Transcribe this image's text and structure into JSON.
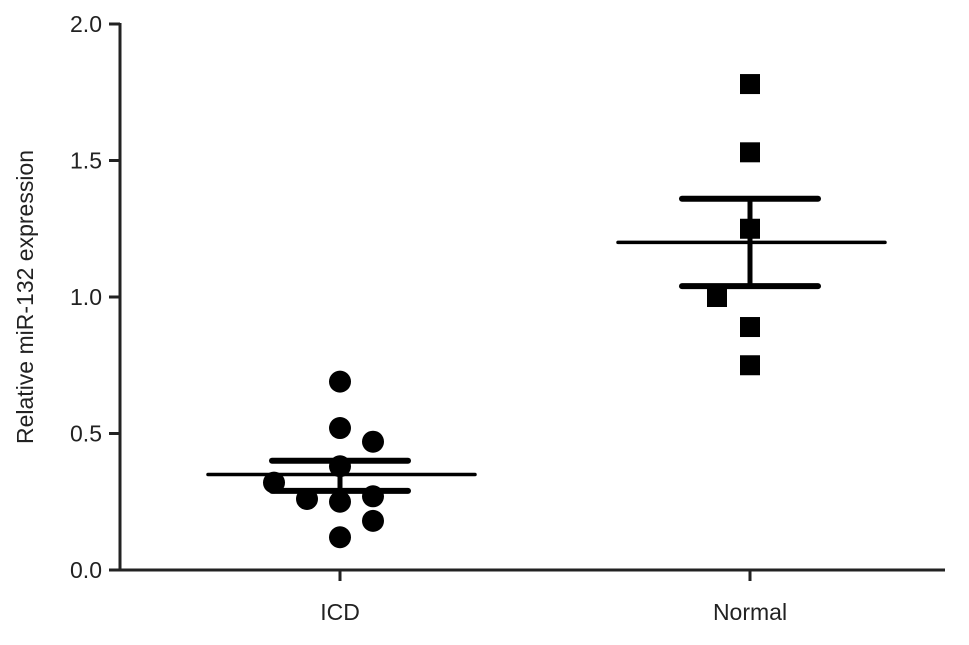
{
  "chart_data": {
    "type": "scatter",
    "title": "",
    "xlabel": "",
    "ylabel": "Relative miR-132 expression",
    "ylim": [
      0,
      2.0
    ],
    "yticks": [
      "0.0",
      "0.5",
      "1.0",
      "1.5",
      "2.0"
    ],
    "grid": false,
    "categories": [
      "ICD",
      "Normal"
    ],
    "series": [
      {
        "name": "ICD",
        "marker": "circle",
        "points": [
          {
            "offset": 0,
            "y": 0.69
          },
          {
            "offset": 0,
            "y": 0.52
          },
          {
            "offset": 1,
            "y": 0.47
          },
          {
            "offset": 0,
            "y": 0.38
          },
          {
            "offset": -2,
            "y": 0.32
          },
          {
            "offset": -1,
            "y": 0.26
          },
          {
            "offset": 0,
            "y": 0.25
          },
          {
            "offset": 1,
            "y": 0.27
          },
          {
            "offset": 1,
            "y": 0.18
          },
          {
            "offset": 0,
            "y": 0.12
          }
        ],
        "mean": 0.35,
        "sem_upper": 0.4,
        "sem_lower": 0.29
      },
      {
        "name": "Normal",
        "marker": "square",
        "points": [
          {
            "offset": 0,
            "y": 1.78
          },
          {
            "offset": 0,
            "y": 1.53
          },
          {
            "offset": 0,
            "y": 1.25
          },
          {
            "offset": -1,
            "y": 1.0
          },
          {
            "offset": 0,
            "y": 0.89
          },
          {
            "offset": 0,
            "y": 0.75
          }
        ],
        "mean": 1.2,
        "sem_upper": 1.36,
        "sem_lower": 1.04
      }
    ]
  }
}
